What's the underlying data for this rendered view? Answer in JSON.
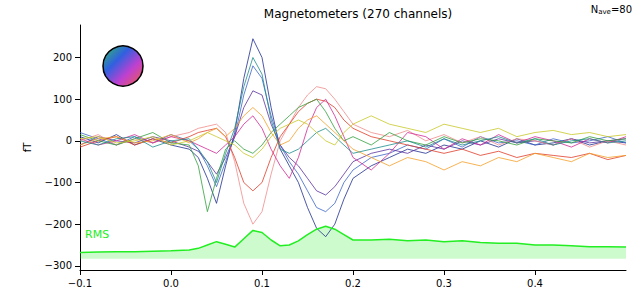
{
  "chart_data": {
    "type": "line",
    "title": "Magnetometers (270 channels)",
    "n_ave": {
      "text": "N",
      "sub": "ave",
      "suffix": "=80"
    },
    "ylabel": "fT",
    "grid": false,
    "x": [
      -0.1,
      -0.08,
      -0.06,
      -0.04,
      -0.02,
      0,
      0.02,
      0.03,
      0.04,
      0.05,
      0.06,
      0.07,
      0.08,
      0.09,
      0.1,
      0.11,
      0.12,
      0.13,
      0.14,
      0.15,
      0.16,
      0.17,
      0.18,
      0.19,
      0.2,
      0.22,
      0.24,
      0.26,
      0.28,
      0.3,
      0.32,
      0.34,
      0.36,
      0.38,
      0.4,
      0.42,
      0.44,
      0.46,
      0.48,
      0.5
    ],
    "xlim": [
      -0.1,
      0.5
    ],
    "xticks": [
      {
        "value": -0.1,
        "label": "−0.1"
      },
      {
        "value": 0,
        "label": "0.0"
      },
      0.1,
      0.2,
      0.3,
      0.4
    ],
    "ylim": [
      -310,
      278
    ],
    "yticks": [
      {
        "value": -300,
        "label": "−300"
      },
      {
        "value": -200,
        "label": "−200"
      },
      {
        "value": -100,
        "label": "−100"
      },
      0,
      100,
      200
    ],
    "series": [
      {
        "color": "#1f2f8f",
        "values": [
          10,
          -5,
          15,
          -10,
          5,
          -10,
          -20,
          -40,
          -90,
          -150,
          -60,
          20,
          150,
          245,
          200,
          80,
          -20,
          -60,
          -100,
          -160,
          -210,
          -230,
          -200,
          -140,
          -90,
          -60,
          -40,
          -20,
          -30,
          -10,
          -20,
          0,
          -15,
          5,
          -10,
          -5,
          5,
          -10,
          0,
          -5
        ]
      },
      {
        "color": "#3c64c8",
        "values": [
          20,
          5,
          -10,
          10,
          -5,
          15,
          0,
          -20,
          -60,
          -110,
          -50,
          10,
          110,
          180,
          150,
          60,
          -10,
          -50,
          -80,
          -120,
          -160,
          -170,
          -150,
          -100,
          -70,
          -40,
          -30,
          -10,
          -20,
          5,
          -15,
          10,
          -5,
          0,
          -10,
          5,
          -5,
          0,
          10,
          -5
        ]
      },
      {
        "color": "#5a32a0",
        "values": [
          -10,
          10,
          0,
          -5,
          10,
          0,
          -15,
          -25,
          -50,
          -80,
          -40,
          10,
          80,
          120,
          110,
          40,
          -10,
          -40,
          -60,
          -90,
          -120,
          -130,
          -110,
          -80,
          -50,
          -30,
          -20,
          -30,
          -10,
          -20,
          0,
          -10,
          5,
          -5,
          0,
          -10,
          5,
          -5,
          0,
          5
        ]
      },
      {
        "color": "#f08c8c",
        "values": [
          0,
          15,
          -10,
          5,
          -5,
          10,
          20,
          30,
          35,
          40,
          20,
          -50,
          -150,
          -200,
          -170,
          -80,
          0,
          40,
          80,
          110,
          130,
          125,
          100,
          70,
          40,
          20,
          10,
          25,
          0,
          15,
          -5,
          10,
          -10,
          5,
          0,
          -10,
          5,
          -15,
          0,
          -10
        ]
      },
      {
        "color": "#e03c28",
        "values": [
          -15,
          0,
          10,
          -10,
          5,
          -5,
          10,
          20,
          25,
          30,
          10,
          -40,
          -100,
          -120,
          -100,
          -40,
          10,
          40,
          70,
          90,
          100,
          95,
          80,
          50,
          30,
          10,
          0,
          -10,
          -20,
          -30,
          -20,
          -35,
          -25,
          -40,
          -30,
          -35,
          -40,
          -30,
          -45,
          -35
        ]
      },
      {
        "color": "#d22896",
        "values": [
          5,
          -10,
          0,
          15,
          -5,
          10,
          0,
          -10,
          -20,
          -30,
          -10,
          10,
          40,
          60,
          30,
          -20,
          -60,
          -90,
          -40,
          30,
          80,
          100,
          60,
          10,
          -40,
          -70,
          -30,
          20,
          10,
          -20,
          5,
          -10,
          15,
          -5,
          10,
          0,
          -15,
          5,
          -5,
          10
        ]
      },
      {
        "color": "#32a03c",
        "values": [
          15,
          0,
          -10,
          5,
          20,
          -5,
          -10,
          -60,
          -170,
          -90,
          -20,
          0,
          -20,
          -30,
          -10,
          20,
          40,
          60,
          80,
          90,
          100,
          70,
          30,
          0,
          10,
          -10,
          20,
          0,
          -10,
          10,
          -5,
          5,
          0,
          -10,
          5,
          0,
          -5,
          10,
          0,
          5
        ]
      },
      {
        "color": "#f5a028",
        "values": [
          -10,
          5,
          10,
          -5,
          0,
          15,
          -5,
          5,
          20,
          30,
          10,
          30,
          60,
          80,
          60,
          20,
          -10,
          0,
          30,
          50,
          60,
          40,
          20,
          0,
          -20,
          -40,
          -60,
          -40,
          -50,
          -70,
          -50,
          -60,
          -40,
          -50,
          -30,
          -40,
          -50,
          -30,
          -40,
          -35
        ]
      },
      {
        "color": "#1e8c8c",
        "values": [
          0,
          -10,
          5,
          10,
          -15,
          0,
          5,
          -20,
          -50,
          -100,
          -30,
          30,
          130,
          200,
          160,
          50,
          -20,
          -30,
          -20,
          0,
          20,
          30,
          10,
          -10,
          -30,
          -20,
          -10,
          0,
          -15,
          5,
          -10,
          0,
          10,
          -5,
          5,
          -10,
          0,
          5,
          -5,
          0
        ]
      },
      {
        "color": "#c8c828",
        "values": [
          5,
          10,
          -5,
          0,
          10,
          -10,
          0,
          10,
          20,
          10,
          0,
          -10,
          -30,
          -40,
          -20,
          10,
          30,
          40,
          50,
          40,
          20,
          0,
          -10,
          20,
          40,
          60,
          40,
          30,
          20,
          40,
          30,
          20,
          30,
          10,
          20,
          25,
          15,
          20,
          10,
          15
        ]
      }
    ],
    "rms": {
      "label": "RMS",
      "color": "#22ee22",
      "baseline": -283,
      "values": [
        -268,
        -267,
        -266,
        -266,
        -265,
        -264,
        -262,
        -258,
        -250,
        -242,
        -248,
        -255,
        -235,
        -215,
        -220,
        -238,
        -252,
        -250,
        -240,
        -225,
        -212,
        -205,
        -212,
        -225,
        -238,
        -238,
        -236,
        -240,
        -238,
        -242,
        -240,
        -244,
        -246,
        -246,
        -250,
        -250,
        -252,
        -254,
        -254,
        -255
      ]
    }
  }
}
